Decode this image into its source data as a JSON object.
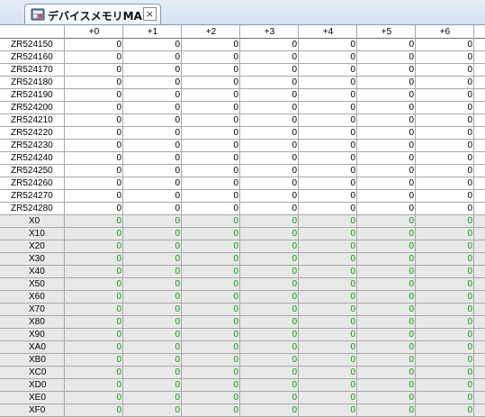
{
  "tab": {
    "title": "デバイスメモリMAIN",
    "close_glyph": "×",
    "icon": "device-memory-icon"
  },
  "colors": {
    "zr_background": "#ffffff",
    "x_background": "#e8e8e8",
    "zr_value_color": "#000000",
    "x_value_color": "#00a000"
  },
  "columns": [
    "+0",
    "+1",
    "+2",
    "+3",
    "+4",
    "+5",
    "+6"
  ],
  "rows": [
    {
      "label": "ZR524150",
      "type": "zr",
      "values": [
        "0",
        "0",
        "0",
        "0",
        "0",
        "0",
        "0"
      ]
    },
    {
      "label": "ZR524160",
      "type": "zr",
      "values": [
        "0",
        "0",
        "0",
        "0",
        "0",
        "0",
        "0"
      ]
    },
    {
      "label": "ZR524170",
      "type": "zr",
      "values": [
        "0",
        "0",
        "0",
        "0",
        "0",
        "0",
        "0"
      ]
    },
    {
      "label": "ZR524180",
      "type": "zr",
      "values": [
        "0",
        "0",
        "0",
        "0",
        "0",
        "0",
        "0"
      ]
    },
    {
      "label": "ZR524190",
      "type": "zr",
      "values": [
        "0",
        "0",
        "0",
        "0",
        "0",
        "0",
        "0"
      ]
    },
    {
      "label": "ZR524200",
      "type": "zr",
      "values": [
        "0",
        "0",
        "0",
        "0",
        "0",
        "0",
        "0"
      ]
    },
    {
      "label": "ZR524210",
      "type": "zr",
      "values": [
        "0",
        "0",
        "0",
        "0",
        "0",
        "0",
        "0"
      ]
    },
    {
      "label": "ZR524220",
      "type": "zr",
      "values": [
        "0",
        "0",
        "0",
        "0",
        "0",
        "0",
        "0"
      ]
    },
    {
      "label": "ZR524230",
      "type": "zr",
      "values": [
        "0",
        "0",
        "0",
        "0",
        "0",
        "0",
        "0"
      ]
    },
    {
      "label": "ZR524240",
      "type": "zr",
      "values": [
        "0",
        "0",
        "0",
        "0",
        "0",
        "0",
        "0"
      ]
    },
    {
      "label": "ZR524250",
      "type": "zr",
      "values": [
        "0",
        "0",
        "0",
        "0",
        "0",
        "0",
        "0"
      ]
    },
    {
      "label": "ZR524260",
      "type": "zr",
      "values": [
        "0",
        "0",
        "0",
        "0",
        "0",
        "0",
        "0"
      ]
    },
    {
      "label": "ZR524270",
      "type": "zr",
      "values": [
        "0",
        "0",
        "0",
        "0",
        "0",
        "0",
        "0"
      ]
    },
    {
      "label": "ZR524280",
      "type": "zr",
      "values": [
        "0",
        "0",
        "0",
        "0",
        "0",
        "0",
        "0"
      ]
    },
    {
      "label": "X0",
      "type": "x",
      "values": [
        "0",
        "0",
        "0",
        "0",
        "0",
        "0",
        "0"
      ]
    },
    {
      "label": "X10",
      "type": "x",
      "values": [
        "0",
        "0",
        "0",
        "0",
        "0",
        "0",
        "0"
      ]
    },
    {
      "label": "X20",
      "type": "x",
      "values": [
        "0",
        "0",
        "0",
        "0",
        "0",
        "0",
        "0"
      ]
    },
    {
      "label": "X30",
      "type": "x",
      "values": [
        "0",
        "0",
        "0",
        "0",
        "0",
        "0",
        "0"
      ]
    },
    {
      "label": "X40",
      "type": "x",
      "values": [
        "0",
        "0",
        "0",
        "0",
        "0",
        "0",
        "0"
      ]
    },
    {
      "label": "X50",
      "type": "x",
      "values": [
        "0",
        "0",
        "0",
        "0",
        "0",
        "0",
        "0"
      ]
    },
    {
      "label": "X60",
      "type": "x",
      "values": [
        "0",
        "0",
        "0",
        "0",
        "0",
        "0",
        "0"
      ]
    },
    {
      "label": "X70",
      "type": "x",
      "values": [
        "0",
        "0",
        "0",
        "0",
        "0",
        "0",
        "0"
      ]
    },
    {
      "label": "X80",
      "type": "x",
      "values": [
        "0",
        "0",
        "0",
        "0",
        "0",
        "0",
        "0"
      ]
    },
    {
      "label": "X90",
      "type": "x",
      "values": [
        "0",
        "0",
        "0",
        "0",
        "0",
        "0",
        "0"
      ]
    },
    {
      "label": "XA0",
      "type": "x",
      "values": [
        "0",
        "0",
        "0",
        "0",
        "0",
        "0",
        "0"
      ]
    },
    {
      "label": "XB0",
      "type": "x",
      "values": [
        "0",
        "0",
        "0",
        "0",
        "0",
        "0",
        "0"
      ]
    },
    {
      "label": "XC0",
      "type": "x",
      "values": [
        "0",
        "0",
        "0",
        "0",
        "0",
        "0",
        "0"
      ]
    },
    {
      "label": "XD0",
      "type": "x",
      "values": [
        "0",
        "0",
        "0",
        "0",
        "0",
        "0",
        "0"
      ]
    },
    {
      "label": "XE0",
      "type": "x",
      "values": [
        "0",
        "0",
        "0",
        "0",
        "0",
        "0",
        "0"
      ]
    },
    {
      "label": "XF0",
      "type": "x",
      "values": [
        "0",
        "0",
        "0",
        "0",
        "0",
        "0",
        "0"
      ]
    }
  ]
}
